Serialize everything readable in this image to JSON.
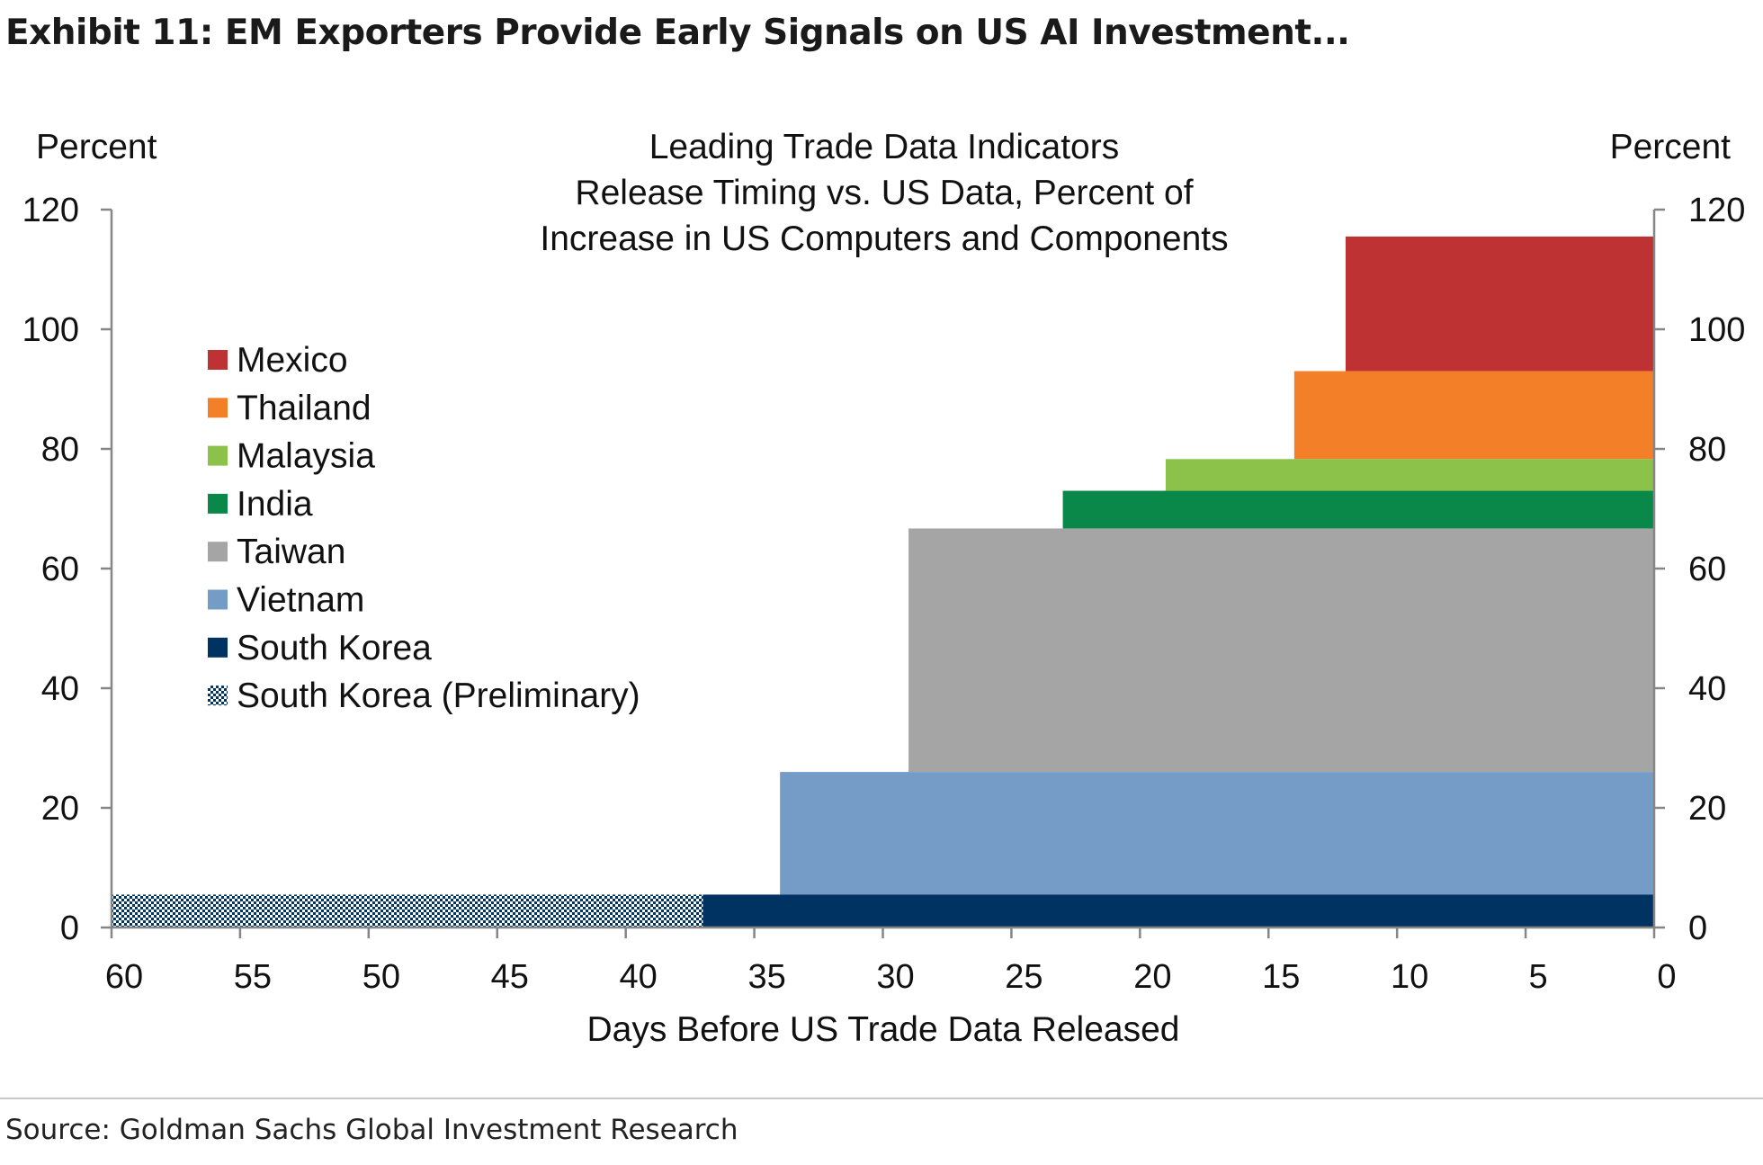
{
  "exhibit_title": "Exhibit 11: EM Exporters Provide Early Signals on US AI Investment...",
  "source": "Source: Goldman Sachs Global Investment Research",
  "chart_data": {
    "type": "area",
    "title_lines": [
      "Leading Trade Data Indicators",
      "Release Timing vs. US Data, Percent of",
      "Increase in US Computers and Components"
    ],
    "xlabel": "Days Before US Trade Data Released",
    "ylabel_left": "Percent",
    "ylabel_right": "Percent",
    "x_reversed": true,
    "xlim": [
      60,
      0
    ],
    "ylim": [
      0,
      120
    ],
    "xticks": [
      60,
      55,
      50,
      45,
      40,
      35,
      30,
      25,
      20,
      15,
      10,
      5,
      0
    ],
    "yticks": [
      0,
      20,
      40,
      60,
      80,
      100,
      120
    ],
    "grid": false,
    "legend_position": "left",
    "series": [
      {
        "name": "Mexico",
        "color": "#be3233",
        "days_before": 12,
        "y_from": 93.0,
        "y_to": 115.5
      },
      {
        "name": "Thailand",
        "color": "#f47f29",
        "days_before": 14,
        "y_from": 78.3,
        "y_to": 93.0
      },
      {
        "name": "Malaysia",
        "color": "#8cc24a",
        "days_before": 19,
        "y_from": 73.0,
        "y_to": 78.3
      },
      {
        "name": "India",
        "color": "#0a884a",
        "days_before": 23,
        "y_from": 66.7,
        "y_to": 73.0
      },
      {
        "name": "Taiwan",
        "color": "#a5a5a5",
        "days_before": 29,
        "y_from": 26.0,
        "y_to": 66.7
      },
      {
        "name": "Vietnam",
        "color": "#759cc7",
        "days_before": 34,
        "y_from": 5.5,
        "y_to": 26.0
      },
      {
        "name": "South Korea",
        "color": "#003361",
        "days_before": 37,
        "y_from": 0,
        "y_to": 5.5
      },
      {
        "name": "South Korea (Preliminary)",
        "color": "#003361",
        "pattern": "checkered",
        "days_before": 60,
        "days_until": 37,
        "y_from": 0,
        "y_to": 5.5
      }
    ]
  }
}
